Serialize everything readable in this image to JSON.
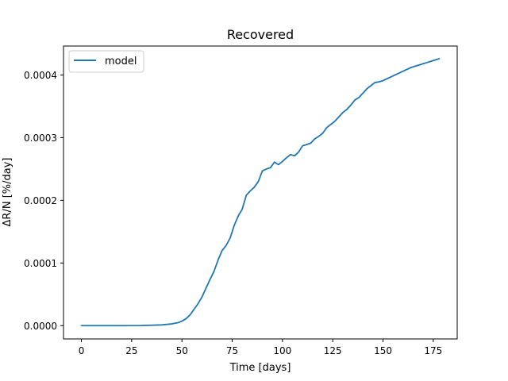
{
  "chart_data": {
    "type": "line",
    "title": "Recovered",
    "xlabel": "Time [days]",
    "ylabel": "ΔR/N [%/day]",
    "xlim": [
      -8.9,
      186.9
    ],
    "ylim": [
      -2.12e-05,
      0.0004462
    ],
    "xticks": [
      0,
      25,
      50,
      75,
      100,
      125,
      150,
      175
    ],
    "xtick_labels": [
      "0",
      "25",
      "50",
      "75",
      "100",
      "125",
      "150",
      "175"
    ],
    "yticks": [
      0,
      0.0001,
      0.0002,
      0.0003,
      0.0004
    ],
    "ytick_labels": [
      "0.0000",
      "0.0001",
      "0.0002",
      "0.0003",
      "0.0004"
    ],
    "grid": false,
    "legend": "top-left",
    "series": [
      {
        "name": "model",
        "color": "#1f77b4",
        "x": [
          0,
          10,
          20,
          30,
          40,
          45,
          48,
          50,
          52,
          54,
          56,
          58,
          60,
          62,
          64,
          66,
          68,
          70,
          72,
          74,
          76,
          78,
          80,
          82,
          84,
          86,
          88,
          90,
          92,
          94,
          96,
          98,
          100,
          102,
          104,
          106,
          108,
          110,
          112,
          114,
          116,
          118,
          120,
          122,
          124,
          126,
          128,
          130,
          132,
          134,
          136,
          138,
          140,
          142,
          144,
          146,
          148,
          150,
          152,
          154,
          156,
          158,
          160,
          162,
          164,
          166,
          168,
          170,
          172,
          174,
          176,
          178
        ],
        "y": [
          0,
          0,
          0,
          2e-07,
          1.2e-06,
          2.8e-06,
          4.7e-06,
          7.2e-06,
          1.1e-05,
          1.7e-05,
          2.6e-05,
          3.5e-05,
          4.6e-05,
          6e-05,
          7.4e-05,
          8.7e-05,
          0.000105,
          0.00012,
          0.000128,
          0.00014,
          0.00016,
          0.000175,
          0.000186,
          0.000208,
          0.000215,
          0.000221,
          0.00023,
          0.000247,
          0.00025,
          0.000252,
          0.000261,
          0.000257,
          0.000262,
          0.000268,
          0.000273,
          0.000271,
          0.000277,
          0.000287,
          0.000289,
          0.000291,
          0.000298,
          0.000302,
          0.000307,
          0.000316,
          0.000321,
          0.000326,
          0.000333,
          0.00034,
          0.000345,
          0.000352,
          0.00036,
          0.000364,
          0.000371,
          0.000378,
          0.000383,
          0.000388,
          0.000389,
          0.000391,
          0.000394,
          0.000397,
          0.0004,
          0.000403,
          0.000406,
          0.000409,
          0.000412,
          0.000414,
          0.000416,
          0.000418,
          0.00042,
          0.000422,
          0.000424,
          0.000426
        ]
      }
    ]
  }
}
